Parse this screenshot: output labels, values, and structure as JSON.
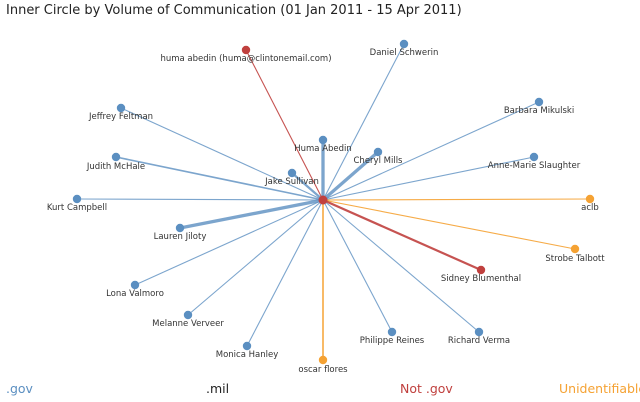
{
  "title": "Inner Circle by Volume of Communication (01 Jan 2011 - 15 Apr 2011)",
  "colors": {
    "gov": "#5b8fc1",
    "mil": "#222222",
    "not_gov": "#c0403e",
    "unidentifiable": "#f5a233"
  },
  "legend": [
    {
      "key": "gov",
      "label": ".gov"
    },
    {
      "key": "mil",
      "label": ".mil"
    },
    {
      "key": "not_gov",
      "label": "Not .gov"
    },
    {
      "key": "unidentifiable",
      "label": "Unidentifiable"
    }
  ],
  "center": {
    "category": "not_gov"
  },
  "nodes": [
    {
      "label": "huma abedin (huma@clintonemail.com)",
      "category": "not_gov",
      "weight": 1
    },
    {
      "label": "Daniel Schwerin",
      "category": "gov",
      "weight": 1
    },
    {
      "label": "Barbara Mikulski",
      "category": "gov",
      "weight": 1
    },
    {
      "label": "Jeffrey Feltman",
      "category": "gov",
      "weight": 1
    },
    {
      "label": "Huma Abedin",
      "category": "gov",
      "weight": 3
    },
    {
      "label": "Cheryl Mills",
      "category": "gov",
      "weight": 3
    },
    {
      "label": "Judith McHale",
      "category": "gov",
      "weight": 1.5
    },
    {
      "label": "Anne-Marie Slaughter",
      "category": "gov",
      "weight": 1
    },
    {
      "label": "Jake Sullivan",
      "category": "gov",
      "weight": 2
    },
    {
      "label": "Kurt Campbell",
      "category": "gov",
      "weight": 1
    },
    {
      "label": "aclb",
      "category": "unidentifiable",
      "weight": 1
    },
    {
      "label": "Lauren Jiloty",
      "category": "gov",
      "weight": 3
    },
    {
      "label": "Strobe Talbott",
      "category": "unidentifiable",
      "weight": 1
    },
    {
      "label": "Sidney Blumenthal",
      "category": "not_gov",
      "weight": 2
    },
    {
      "label": "Lona Valmoro",
      "category": "gov",
      "weight": 1
    },
    {
      "label": "Melanne Verveer",
      "category": "gov",
      "weight": 1
    },
    {
      "label": "Philippe Reines",
      "category": "gov",
      "weight": 1
    },
    {
      "label": "Richard Verma",
      "category": "gov",
      "weight": 1
    },
    {
      "label": "Monica Hanley",
      "category": "gov",
      "weight": 1
    },
    {
      "label": "oscar flores",
      "category": "unidentifiable",
      "weight": 1.5
    }
  ]
}
